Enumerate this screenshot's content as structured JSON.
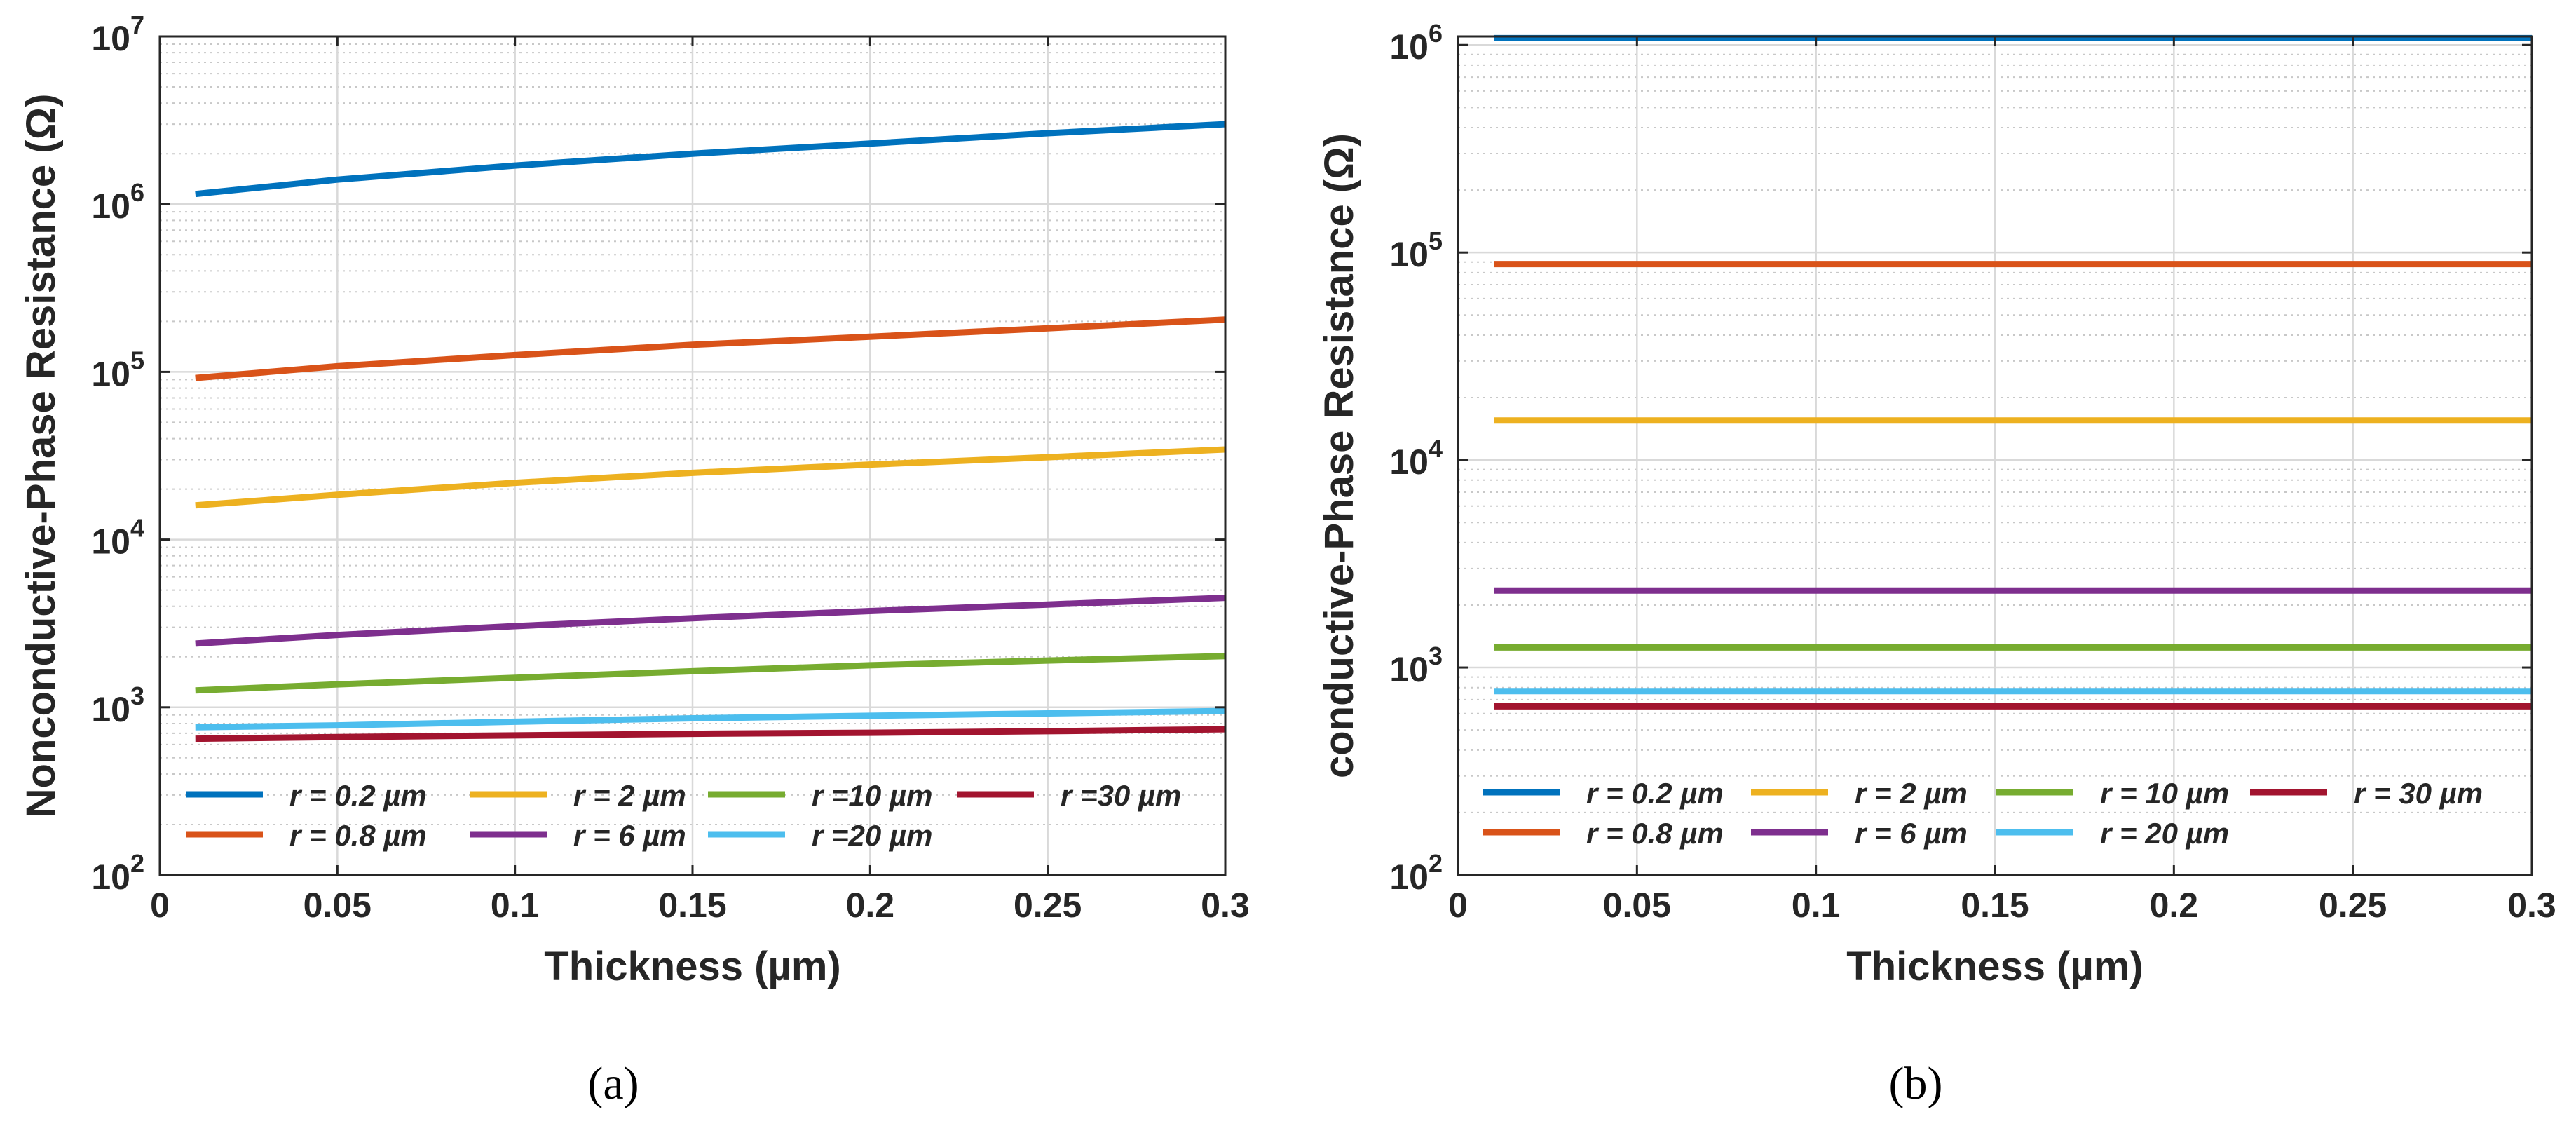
{
  "chart_data": [
    {
      "type": "line",
      "id": "a",
      "caption": "(a)",
      "xlabel": "Thickness (µm)",
      "ylabel": "Nonconductive-Phase Resistance (Ω)",
      "xlim": [
        0,
        0.3
      ],
      "ylim": [
        100,
        10000000
      ],
      "yscale": "log",
      "grid": true,
      "xticks": [
        "0",
        "0.05",
        "0.1",
        "0.15",
        "0.2",
        "0.25",
        "0.3"
      ],
      "yticks": [
        {
          "base": "10",
          "exp": "2"
        },
        {
          "base": "10",
          "exp": "3"
        },
        {
          "base": "10",
          "exp": "4"
        },
        {
          "base": "10",
          "exp": "5"
        },
        {
          "base": "10",
          "exp": "6"
        },
        {
          "base": "10",
          "exp": "7"
        }
      ],
      "x": [
        0.01,
        0.05,
        0.1,
        0.15,
        0.2,
        0.25,
        0.3
      ],
      "legend": {
        "placement": "bottom",
        "columns": 4
      },
      "series": [
        {
          "name": "r = 0.2 µm",
          "color": "#0072BD",
          "values": [
            1150000,
            1400000,
            1700000,
            2000000,
            2300000,
            2650000,
            3000000
          ]
        },
        {
          "name": "r = 0.8 µm",
          "color": "#D95319",
          "values": [
            92000,
            108000,
            126000,
            145000,
            162000,
            182000,
            205000
          ]
        },
        {
          "name": "r =  2 µm",
          "color": "#EDB120",
          "values": [
            16000,
            18500,
            21800,
            25000,
            28000,
            31000,
            34500
          ]
        },
        {
          "name": "r =  6 µm",
          "color": "#7E2F8E",
          "values": [
            2400,
            2700,
            3050,
            3400,
            3750,
            4100,
            4500
          ]
        },
        {
          "name": "r =10 µm",
          "color": "#77AC30",
          "values": [
            1260,
            1370,
            1500,
            1640,
            1780,
            1900,
            2020
          ]
        },
        {
          "name": "r =20 µm",
          "color": "#4DBEEE",
          "values": [
            760,
            780,
            820,
            860,
            890,
            920,
            950
          ]
        },
        {
          "name": "r =30 µm",
          "color": "#A2142F",
          "values": [
            650,
            665,
            680,
            695,
            705,
            720,
            740
          ]
        }
      ]
    },
    {
      "type": "line",
      "id": "b",
      "caption": "(b)",
      "xlabel": "Thickness (µm)",
      "ylabel": "conductive-Phase Resistance (Ω)",
      "xlim": [
        0,
        0.3
      ],
      "ylim": [
        100,
        1100000
      ],
      "yscale": "log",
      "grid": true,
      "xticks": [
        "0",
        "0.05",
        "0.1",
        "0.15",
        "0.2",
        "0.25",
        "0.3"
      ],
      "yticks": [
        {
          "base": "10",
          "exp": "2"
        },
        {
          "base": "10",
          "exp": "3"
        },
        {
          "base": "10",
          "exp": "4"
        },
        {
          "base": "10",
          "exp": "5"
        },
        {
          "base": "10",
          "exp": "6"
        }
      ],
      "x": [
        0.01,
        0.3
      ],
      "legend": {
        "placement": "bottom",
        "columns": 4
      },
      "series": [
        {
          "name": "r = 0.2 µm",
          "color": "#0072BD",
          "values": [
            1080000,
            1080000
          ]
        },
        {
          "name": "r = 0.8 µm",
          "color": "#D95319",
          "values": [
            88000,
            88000
          ]
        },
        {
          "name": "r = 2 µm",
          "color": "#EDB120",
          "values": [
            15500,
            15500
          ]
        },
        {
          "name": "r = 6 µm",
          "color": "#7E2F8E",
          "values": [
            2350,
            2350
          ]
        },
        {
          "name": "r = 10 µm",
          "color": "#77AC30",
          "values": [
            1250,
            1250
          ]
        },
        {
          "name": "r = 20 µm",
          "color": "#4DBEEE",
          "values": [
            770,
            770
          ]
        },
        {
          "name": "r = 30 µm",
          "color": "#A2142F",
          "values": [
            650,
            650
          ]
        }
      ]
    }
  ]
}
